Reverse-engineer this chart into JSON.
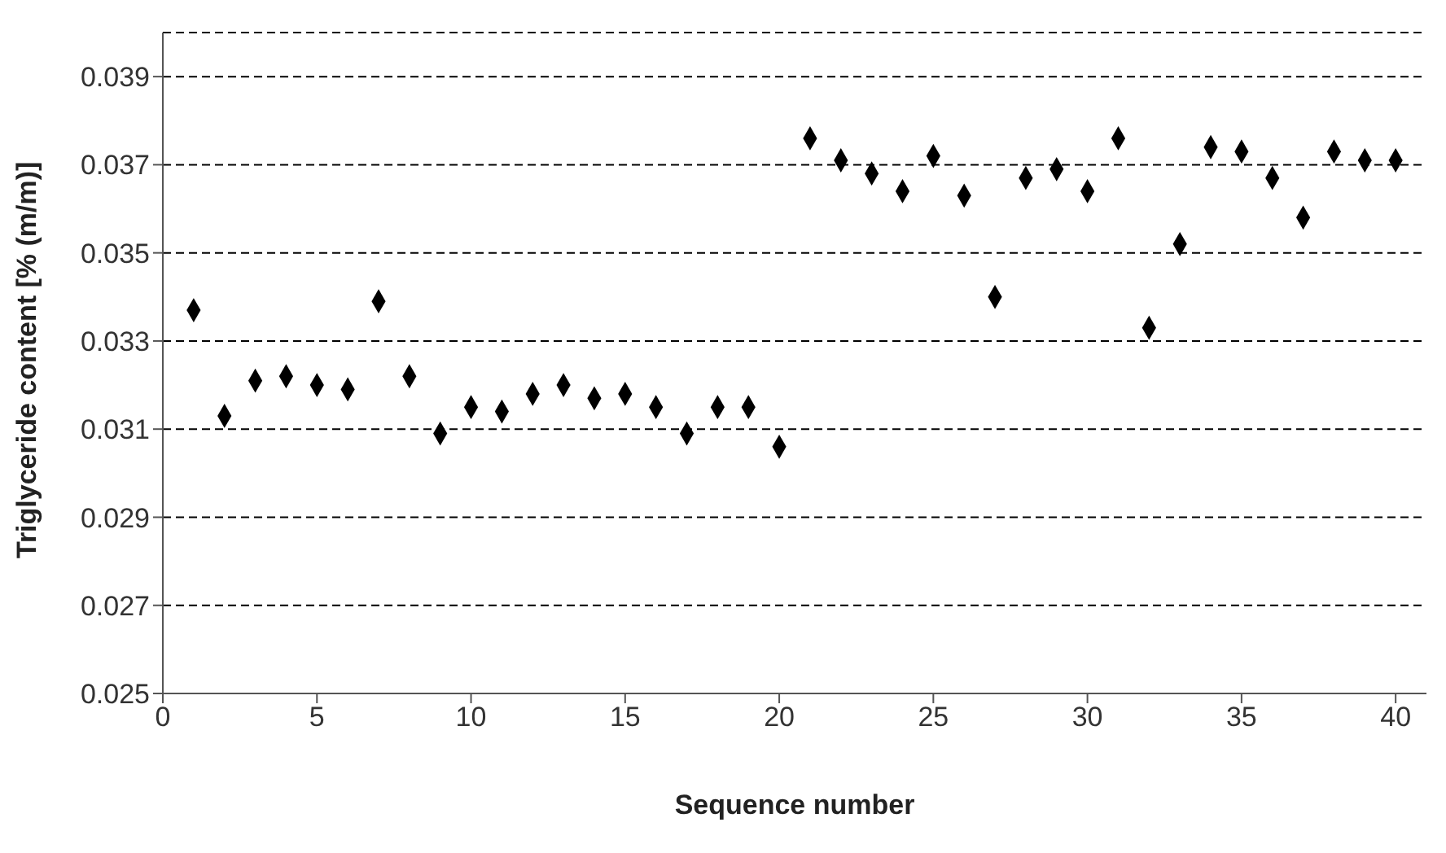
{
  "chart_data": {
    "type": "scatter",
    "xlabel": "Sequence number",
    "ylabel": "Triglyceride content [% (m/m)]",
    "x": [
      1,
      2,
      3,
      4,
      5,
      6,
      7,
      8,
      9,
      10,
      11,
      12,
      13,
      14,
      15,
      16,
      17,
      18,
      19,
      20,
      21,
      22,
      23,
      24,
      25,
      26,
      27,
      28,
      29,
      30,
      31,
      32,
      33,
      34,
      35,
      36,
      37,
      38,
      39,
      40
    ],
    "series": [
      {
        "color": "#000000",
        "values": [
          0.0337,
          0.0313,
          0.0321,
          0.0322,
          0.032,
          0.0319,
          0.0339,
          0.0322,
          0.0309,
          0.0315,
          0.0314,
          0.0318,
          0.032,
          0.0317,
          0.0318,
          0.0315,
          0.0309,
          0.0315,
          0.0315,
          0.0306,
          0.0376,
          0.0371,
          0.0368,
          0.0364,
          0.0372,
          0.0363,
          0.034,
          0.0367,
          0.0369,
          0.0364,
          0.0376,
          0.0333,
          0.0352,
          0.0374,
          0.0373,
          0.0367,
          0.0358,
          0.0373,
          0.0371,
          0.0371
        ]
      }
    ],
    "xlim": [
      0,
      41
    ],
    "xticks": [
      0,
      5,
      10,
      15,
      20,
      25,
      30,
      35,
      40
    ],
    "ylim": [
      0.025,
      0.04
    ],
    "yticks": [
      0.025,
      0.027,
      0.029,
      0.031,
      0.033,
      0.035,
      0.037,
      0.039
    ],
    "grid": "y",
    "marker": "diamond"
  }
}
